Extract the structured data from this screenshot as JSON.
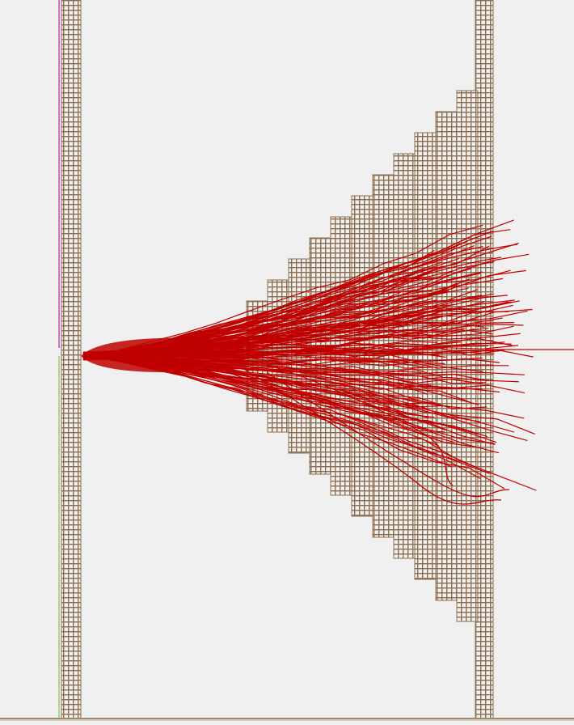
{
  "scene": {
    "background_color": "#f0f0f0",
    "grid_brick_color": "#8c6e50",
    "grid_mortar_color": "#f0f0f0",
    "fiber_color": "#c00000",
    "magenta_line_color": "#cc44cc",
    "green_line_color": "#99cc66",
    "bottom_bar_color": "#9b8a70"
  },
  "icons": {
    "fiber_bundle": "fiber-bundle-icon",
    "left_wall": "left-wall-icon",
    "right_wall": "right-wall-icon"
  }
}
